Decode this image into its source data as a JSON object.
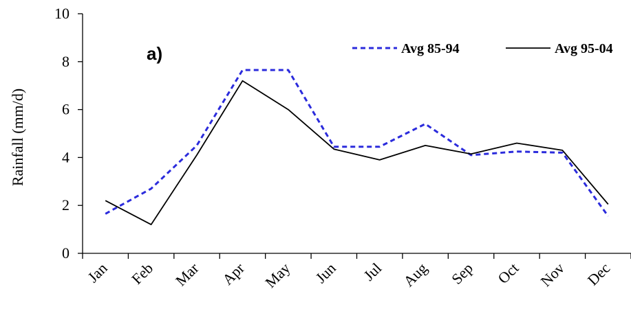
{
  "chart_data": {
    "type": "line",
    "panel_label": "a)",
    "ylabel": "Rainfall (mm/d)",
    "xlabel": "",
    "ylim": [
      0,
      10
    ],
    "yticks": [
      0,
      2,
      4,
      6,
      8,
      10
    ],
    "categories": [
      "Jan",
      "Feb",
      "Mar",
      "Apr",
      "May",
      "Jun",
      "Jul",
      "Aug",
      "Sep",
      "Oct",
      "Nov",
      "Dec"
    ],
    "grid": false,
    "legend_position": "top-right",
    "series": [
      {
        "name": "Avg 85-94",
        "color": "#2b2bdc",
        "style": "dashed",
        "values": [
          1.65,
          2.7,
          4.5,
          7.65,
          7.65,
          4.45,
          4.45,
          5.4,
          4.1,
          4.25,
          4.2,
          1.55
        ]
      },
      {
        "name": "Avg 95-04",
        "color": "#000000",
        "style": "solid",
        "values": [
          2.2,
          1.2,
          4.1,
          7.2,
          6.0,
          4.35,
          3.9,
          4.5,
          4.15,
          4.6,
          4.3,
          2.05
        ]
      }
    ]
  }
}
